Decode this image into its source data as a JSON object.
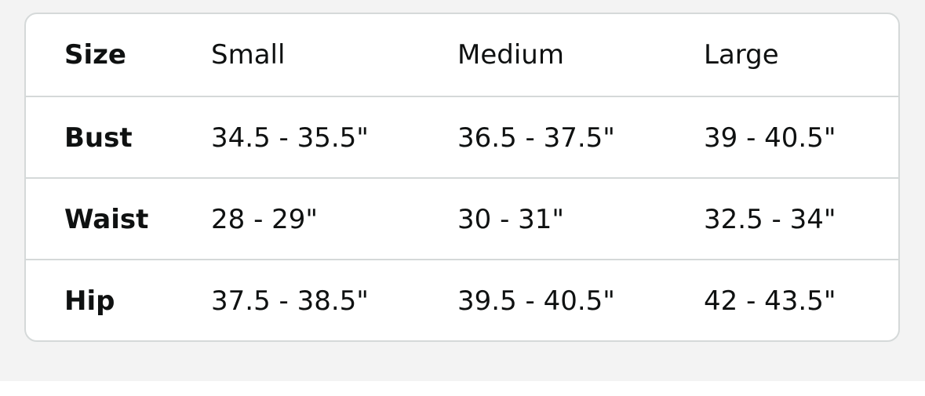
{
  "table": {
    "header": {
      "label": "Size",
      "cells": [
        "Small",
        "Medium",
        "Large"
      ]
    },
    "rows": [
      {
        "label": "Bust",
        "cells": [
          "34.5 - 35.5\"",
          "36.5 - 37.5\"",
          "39 - 40.5\""
        ]
      },
      {
        "label": "Waist",
        "cells": [
          "28 - 29\"",
          "30 - 31\"",
          "32.5 - 34\""
        ]
      },
      {
        "label": "Hip",
        "cells": [
          "37.5 - 38.5\"",
          "39.5 - 40.5\"",
          "42 - 43.5\""
        ]
      }
    ]
  }
}
